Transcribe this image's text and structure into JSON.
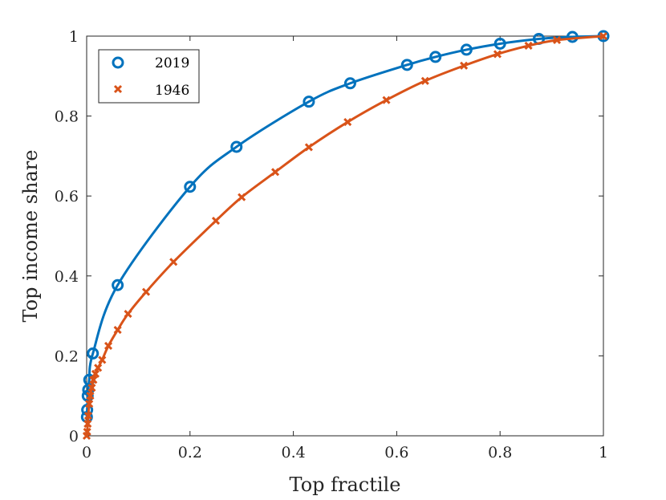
{
  "chart_data": {
    "type": "line",
    "xlabel": "Top fractile",
    "ylabel": "Top income share",
    "xlim": [
      0,
      1
    ],
    "ylim": [
      0,
      1
    ],
    "xticks": [
      "0",
      "0.2",
      "0.4",
      "0.6",
      "0.8",
      "1"
    ],
    "yticks": [
      "0",
      "0.2",
      "0.4",
      "0.6",
      "0.8",
      "1"
    ],
    "grid": false,
    "legend_position": "top-left",
    "series": [
      {
        "name": "2019",
        "color": "#0072BD",
        "marker": "circle",
        "x": [
          0.0005,
          0.001,
          0.002,
          0.003,
          0.005,
          0.012,
          0.06,
          0.2,
          0.29,
          0.43,
          0.51,
          0.62,
          0.675,
          0.735,
          0.8,
          0.875,
          0.94,
          1
        ],
        "y": [
          0.047,
          0.065,
          0.1,
          0.115,
          0.14,
          0.206,
          0.377,
          0.623,
          0.723,
          0.836,
          0.882,
          0.928,
          0.948,
          0.966,
          0.981,
          0.993,
          0.998,
          1
        ]
      },
      {
        "name": "1946",
        "color": "#D95319",
        "marker": "x",
        "x": [
          0,
          0.001,
          0.002,
          0.003,
          0.005,
          0.007,
          0.01,
          0.013,
          0.017,
          0.022,
          0.03,
          0.042,
          0.06,
          0.08,
          0.115,
          0.168,
          0.25,
          0.3,
          0.365,
          0.43,
          0.505,
          0.58,
          0.655,
          0.73,
          0.795,
          0.855,
          0.91,
          1
        ],
        "y": [
          0,
          0.01,
          0.03,
          0.05,
          0.08,
          0.1,
          0.12,
          0.14,
          0.155,
          0.17,
          0.19,
          0.225,
          0.265,
          0.305,
          0.36,
          0.435,
          0.538,
          0.597,
          0.66,
          0.722,
          0.785,
          0.84,
          0.888,
          0.926,
          0.955,
          0.976,
          0.99,
          1
        ]
      }
    ]
  }
}
